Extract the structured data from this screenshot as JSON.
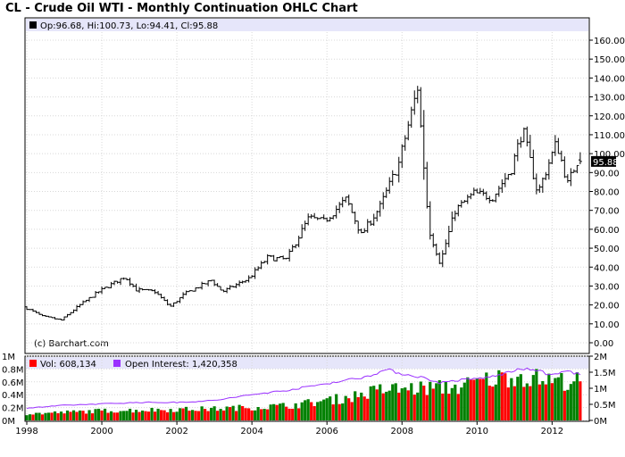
{
  "title": "CL - Crude Oil WTI - Monthly Continuation OHLC Chart",
  "price_legend": "Op:96.68, Hi:100.73, Lo:94.41, Cl:95.88",
  "last_price_label": "95.88",
  "watermark": "(c) Barchart.com",
  "volume_legend": "Vol: 608,134",
  "oi_legend": "Open Interest: 1,420,358",
  "colors": {
    "panel_header": "#e6e6fa",
    "bar_up": "#008000",
    "bar_down": "#ff0000",
    "open_interest": "#9a30ff",
    "price_bars": "#000000"
  },
  "chart_data": [
    {
      "type": "ohlc",
      "title": "CL - Crude Oil WTI - Monthly Continuation OHLC Chart",
      "price_axis_ticks": [
        "0.00",
        "10.00",
        "20.00",
        "30.00",
        "40.00",
        "50.00",
        "60.00",
        "70.00",
        "80.00",
        "90.00",
        "100.00",
        "110.00",
        "120.00",
        "130.00",
        "140.00",
        "150.00",
        "160.00"
      ],
      "ylim": [
        0,
        160
      ],
      "x_ticks": [
        "1998",
        "2000",
        "2002",
        "2004",
        "2006",
        "2008",
        "2010",
        "2012"
      ],
      "xlim": [
        1998,
        2012.92
      ],
      "grid": true,
      "last": {
        "open": 96.68,
        "high": 100.73,
        "low": 94.41,
        "close": 95.88
      },
      "monthly_close_anchors": [
        {
          "t": 1998.0,
          "v": 19
        },
        {
          "t": 1998.5,
          "v": 14
        },
        {
          "t": 1999.0,
          "v": 12
        },
        {
          "t": 1999.5,
          "v": 20
        },
        {
          "t": 2000.0,
          "v": 27
        },
        {
          "t": 2000.7,
          "v": 35
        },
        {
          "t": 2001.0,
          "v": 28
        },
        {
          "t": 2001.5,
          "v": 27
        },
        {
          "t": 2001.9,
          "v": 19
        },
        {
          "t": 2002.3,
          "v": 26
        },
        {
          "t": 2003.0,
          "v": 33
        },
        {
          "t": 2003.3,
          "v": 27
        },
        {
          "t": 2004.0,
          "v": 34
        },
        {
          "t": 2004.5,
          "v": 45
        },
        {
          "t": 2005.0,
          "v": 44
        },
        {
          "t": 2005.6,
          "v": 66
        },
        {
          "t": 2006.0,
          "v": 64
        },
        {
          "t": 2006.6,
          "v": 76
        },
        {
          "t": 2007.0,
          "v": 57
        },
        {
          "t": 2007.5,
          "v": 72
        },
        {
          "t": 2008.0,
          "v": 95
        },
        {
          "t": 2008.5,
          "v": 135
        },
        {
          "t": 2008.8,
          "v": 60
        },
        {
          "t": 2009.1,
          "v": 42
        },
        {
          "t": 2009.5,
          "v": 70
        },
        {
          "t": 2010.0,
          "v": 79
        },
        {
          "t": 2010.5,
          "v": 77
        },
        {
          "t": 2011.0,
          "v": 92
        },
        {
          "t": 2011.3,
          "v": 113
        },
        {
          "t": 2011.7,
          "v": 79
        },
        {
          "t": 2012.2,
          "v": 106
        },
        {
          "t": 2012.5,
          "v": 84
        },
        {
          "t": 2012.75,
          "v": 95.9
        }
      ]
    },
    {
      "type": "bar",
      "series": [
        {
          "name": "Vol",
          "last": 608134
        },
        {
          "name": "Open Interest",
          "last": 1420358
        }
      ],
      "left_axis_ticks": [
        "0M",
        "0.2M",
        "0.4M",
        "0.6M",
        "0.8M",
        "1M"
      ],
      "right_axis_ticks": [
        "0M",
        "0.5M",
        "1M",
        "1.5M",
        "2M"
      ],
      "volume_ylim": [
        0,
        1000000
      ],
      "oi_ylim": [
        0,
        2000000
      ],
      "volume_anchors": [
        {
          "t": 1998.0,
          "v": 100000
        },
        {
          "t": 2000.0,
          "v": 150000
        },
        {
          "t": 2003.0,
          "v": 180000
        },
        {
          "t": 2005.0,
          "v": 230000
        },
        {
          "t": 2006.5,
          "v": 350000
        },
        {
          "t": 2007.5,
          "v": 480000
        },
        {
          "t": 2008.5,
          "v": 500000
        },
        {
          "t": 2009.5,
          "v": 520000
        },
        {
          "t": 2010.2,
          "v": 620000
        },
        {
          "t": 2011.0,
          "v": 700000
        },
        {
          "t": 2012.0,
          "v": 620000
        },
        {
          "t": 2012.75,
          "v": 608134
        }
      ],
      "oi_anchors": [
        {
          "t": 1998.0,
          "v": 380000
        },
        {
          "t": 1999.0,
          "v": 470000
        },
        {
          "t": 2001.0,
          "v": 560000
        },
        {
          "t": 2002.0,
          "v": 560000
        },
        {
          "t": 2003.0,
          "v": 620000
        },
        {
          "t": 2004.0,
          "v": 800000
        },
        {
          "t": 2005.0,
          "v": 950000
        },
        {
          "t": 2006.0,
          "v": 1150000
        },
        {
          "t": 2007.0,
          "v": 1350000
        },
        {
          "t": 2007.6,
          "v": 1580000
        },
        {
          "t": 2008.0,
          "v": 1450000
        },
        {
          "t": 2008.5,
          "v": 1350000
        },
        {
          "t": 2009.0,
          "v": 1170000
        },
        {
          "t": 2009.5,
          "v": 1250000
        },
        {
          "t": 2010.0,
          "v": 1300000
        },
        {
          "t": 2010.5,
          "v": 1380000
        },
        {
          "t": 2011.0,
          "v": 1560000
        },
        {
          "t": 2011.5,
          "v": 1600000
        },
        {
          "t": 2012.0,
          "v": 1400000
        },
        {
          "t": 2012.4,
          "v": 1550000
        },
        {
          "t": 2012.75,
          "v": 1420358
        }
      ]
    }
  ]
}
